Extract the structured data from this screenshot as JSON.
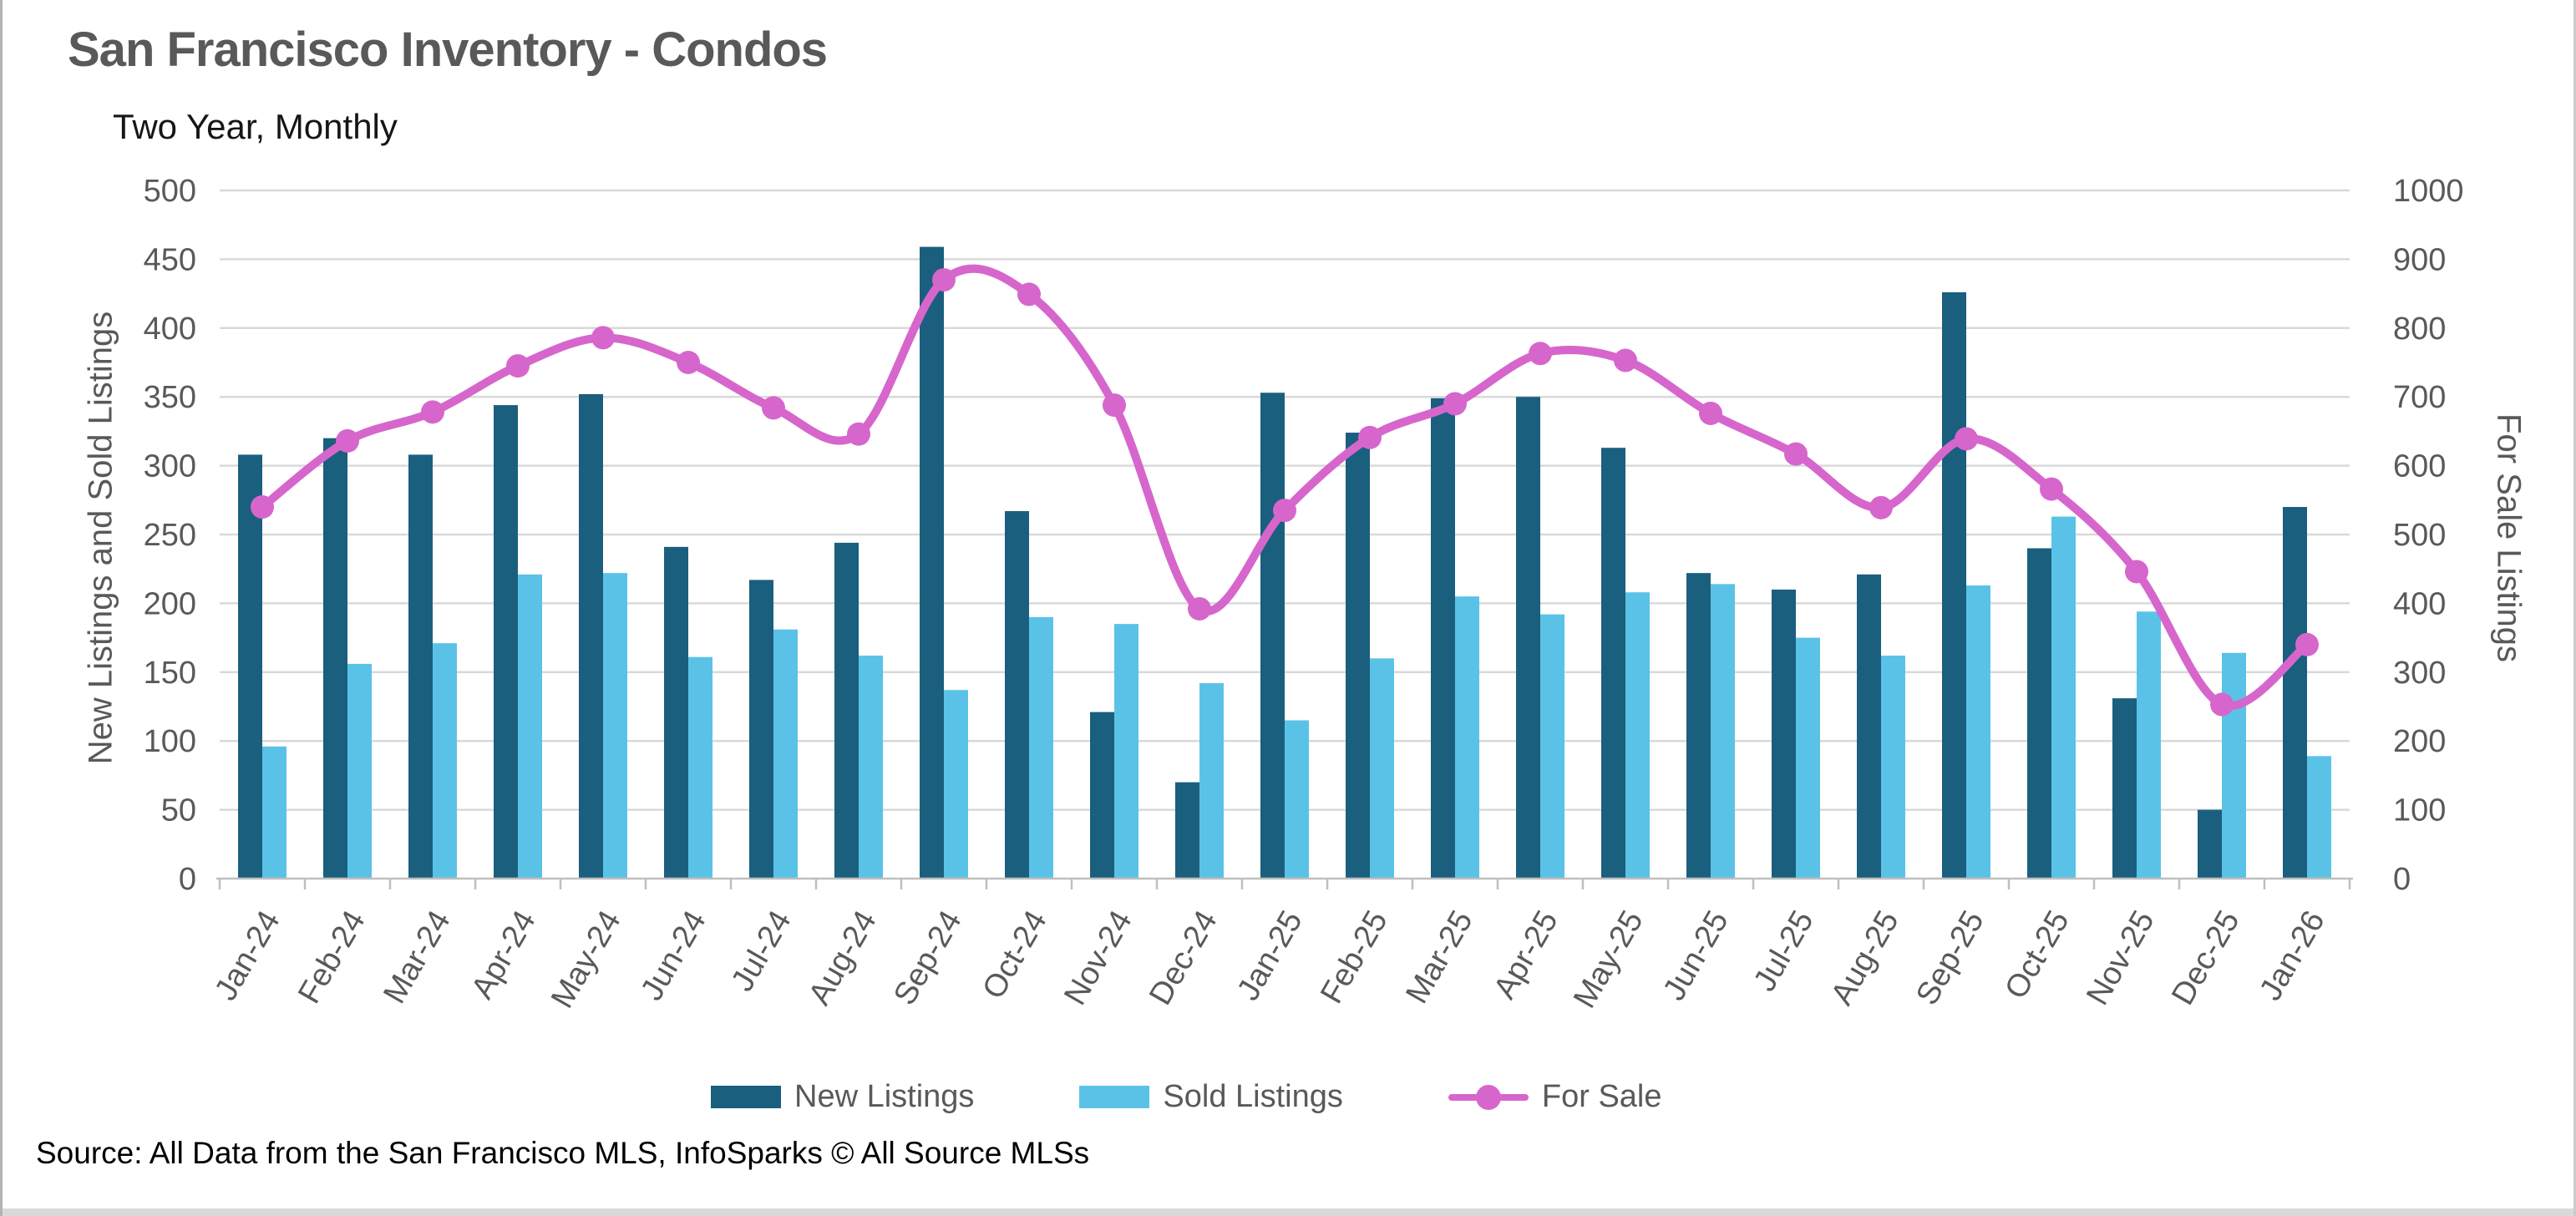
{
  "header": {
    "title": "San Francisco Inventory - Condos",
    "subtitle": "Two Year, Monthly"
  },
  "source": "Source: All Data from the San Francisco MLS, InfoSparks © All Source MLSs",
  "colors": {
    "new_listings": "#1A5F7E",
    "sold_listings": "#5BC2E7",
    "for_sale": "#D666CC",
    "gridline": "#D9D9D9",
    "axis_line": "#BFBFBF",
    "tick_text": "#595959"
  },
  "legend": {
    "items": [
      {
        "label": "New Listings",
        "type": "bar",
        "color": "#1A5F7E"
      },
      {
        "label": "Sold Listings",
        "type": "bar",
        "color": "#5BC2E7"
      },
      {
        "label": "For Sale",
        "type": "line",
        "color": "#D666CC"
      }
    ]
  },
  "chart_data": {
    "type": "bar",
    "subtype": "combo-bar-line",
    "title": "San Francisco Inventory - Condos",
    "subtitle": "Two Year, Monthly",
    "categories": [
      "Jan-24",
      "Feb-24",
      "Mar-24",
      "Apr-24",
      "May-24",
      "Jun-24",
      "Jul-24",
      "Aug-24",
      "Sep-24",
      "Oct-24",
      "Nov-24",
      "Dec-24",
      "Jan-25",
      "Feb-25",
      "Mar-25",
      "Apr-25",
      "May-25",
      "Jun-25",
      "Jul-25",
      "Aug-25",
      "Sep-25",
      "Oct-25",
      "Nov-25",
      "Dec-25",
      "Jan-26"
    ],
    "series": [
      {
        "name": "New Listings",
        "type": "bar",
        "axis": "left",
        "color": "#1A5F7E",
        "values": [
          308,
          320,
          308,
          344,
          352,
          241,
          217,
          244,
          459,
          267,
          121,
          70,
          353,
          324,
          349,
          350,
          313,
          222,
          210,
          221,
          426,
          240,
          131,
          50,
          270
        ]
      },
      {
        "name": "Sold Listings",
        "type": "bar",
        "axis": "left",
        "color": "#5BC2E7",
        "values": [
          96,
          156,
          171,
          221,
          222,
          161,
          181,
          162,
          137,
          190,
          185,
          142,
          115,
          160,
          205,
          192,
          208,
          214,
          175,
          162,
          213,
          263,
          194,
          164,
          89
        ]
      },
      {
        "name": "For Sale",
        "type": "line",
        "axis": "right",
        "color": "#D666CC",
        "values": [
          540,
          636,
          678,
          745,
          786,
          750,
          684,
          646,
          870,
          849,
          688,
          392,
          535,
          641,
          690,
          763,
          753,
          676,
          617,
          539,
          639,
          566,
          446,
          253,
          340
        ]
      }
    ],
    "left_axis": {
      "title": "New Listings and Sold Listings",
      "min": 0,
      "max": 500,
      "step": 50,
      "ticks": [
        "0",
        "50",
        "100",
        "150",
        "200",
        "250",
        "300",
        "350",
        "400",
        "450",
        "500"
      ]
    },
    "right_axis": {
      "title": "For Sale Listings",
      "min": 0,
      "max": 1000,
      "step": 100,
      "ticks": [
        "0",
        "100",
        "200",
        "300",
        "400",
        "500",
        "600",
        "700",
        "800",
        "900",
        "1000"
      ]
    },
    "grid": true,
    "legend_position": "bottom"
  }
}
